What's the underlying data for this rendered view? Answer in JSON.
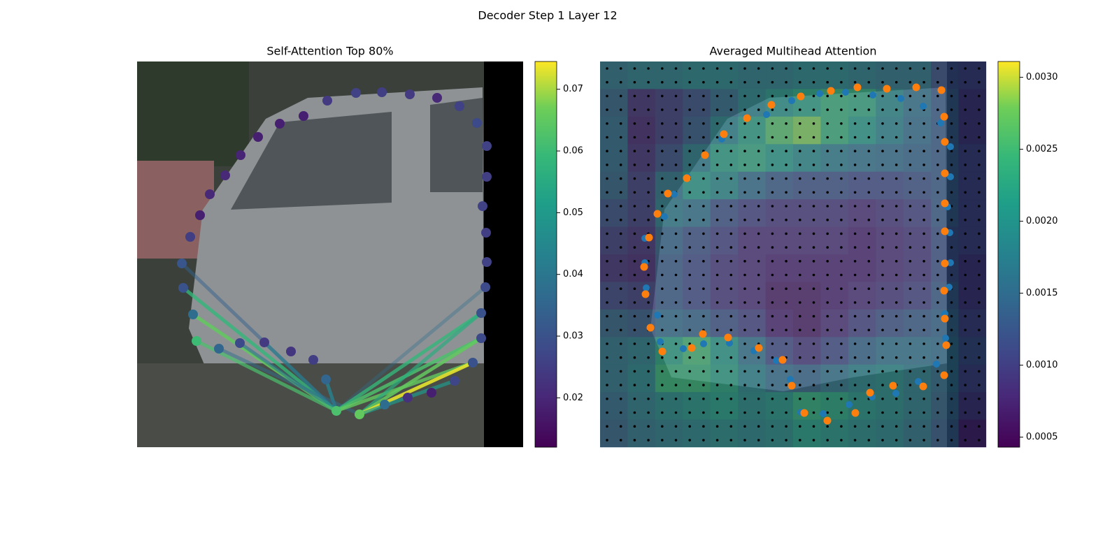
{
  "title": "Decoder Step 1 Layer 12",
  "chart_data": [
    {
      "type": "scatter",
      "title": "Self-Attention Top 80%",
      "values": [
        0.031,
        0.025,
        0.018,
        0.02,
        0.02,
        0.019,
        0.018,
        0.018,
        0.018,
        0.024,
        0.026,
        0.025,
        0.024,
        0.02,
        0.026,
        0.028,
        0.026,
        0.025,
        0.026,
        0.025,
        0.026,
        0.028,
        0.03,
        0.028,
        0.03,
        0.027,
        0.018,
        0.022,
        0.037,
        0.065,
        0.062,
        0.035,
        0.025,
        0.023,
        0.024,
        0.028,
        0.035,
        0.06,
        0.037,
        0.03
      ],
      "clim": [
        0.012,
        0.0745
      ],
      "cticks": [
        0.02,
        0.03,
        0.04,
        0.05,
        0.06,
        0.07
      ]
    },
    {
      "type": "heatmap",
      "title": "Averaged Multihead Attention",
      "values": [
        [
          0.0016,
          0.0017,
          0.0017,
          0.0018,
          0.0018,
          0.0017,
          0.0017,
          0.0018,
          0.0018,
          0.0017,
          0.0016,
          0.0016,
          0.0012,
          0.0011
        ],
        [
          0.0014,
          0.0009,
          0.001,
          0.0012,
          0.0015,
          0.0018,
          0.002,
          0.0022,
          0.0024,
          0.0023,
          0.0019,
          0.0016,
          0.0013,
          0.001
        ],
        [
          0.0015,
          0.0008,
          0.001,
          0.0013,
          0.0018,
          0.0022,
          0.0026,
          0.0028,
          0.0024,
          0.0021,
          0.0018,
          0.0015,
          0.0013,
          0.001
        ],
        [
          0.0015,
          0.0009,
          0.0012,
          0.0017,
          0.0022,
          0.0023,
          0.0021,
          0.0019,
          0.0017,
          0.0016,
          0.0015,
          0.0014,
          0.0013,
          0.0011
        ],
        [
          0.0014,
          0.001,
          0.0016,
          0.0021,
          0.0019,
          0.0015,
          0.0013,
          0.0012,
          0.0012,
          0.0011,
          0.0011,
          0.0012,
          0.0013,
          0.0011
        ],
        [
          0.0012,
          0.001,
          0.0017,
          0.0016,
          0.0012,
          0.001,
          0.0009,
          0.0009,
          0.0009,
          0.0008,
          0.0009,
          0.001,
          0.0013,
          0.0011
        ],
        [
          0.001,
          0.0009,
          0.0014,
          0.0012,
          0.001,
          0.0008,
          0.0008,
          0.0008,
          0.0008,
          0.0007,
          0.0008,
          0.0009,
          0.0012,
          0.0011
        ],
        [
          0.0009,
          0.0008,
          0.0013,
          0.0011,
          0.0009,
          0.0008,
          0.0007,
          0.0007,
          0.0007,
          0.0007,
          0.0008,
          0.0009,
          0.0012,
          0.001
        ],
        [
          0.0011,
          0.001,
          0.0013,
          0.0011,
          0.0009,
          0.0008,
          0.0006,
          0.0006,
          0.0007,
          0.0008,
          0.0009,
          0.001,
          0.0013,
          0.001
        ],
        [
          0.0014,
          0.0013,
          0.0015,
          0.0014,
          0.0012,
          0.001,
          0.0007,
          0.0006,
          0.0008,
          0.001,
          0.0012,
          0.0013,
          0.0014,
          0.0011
        ],
        [
          0.0016,
          0.0017,
          0.0022,
          0.0025,
          0.0021,
          0.0016,
          0.0011,
          0.0009,
          0.0011,
          0.0014,
          0.0016,
          0.0016,
          0.0015,
          0.0012
        ],
        [
          0.0016,
          0.0018,
          0.0024,
          0.0024,
          0.0022,
          0.0018,
          0.0015,
          0.0014,
          0.0016,
          0.0018,
          0.0019,
          0.0017,
          0.0015,
          0.0011
        ],
        [
          0.0015,
          0.0017,
          0.0019,
          0.002,
          0.0021,
          0.0019,
          0.002,
          0.0023,
          0.0022,
          0.002,
          0.0019,
          0.0017,
          0.0014,
          0.001
        ],
        [
          0.0014,
          0.0016,
          0.0017,
          0.0018,
          0.0019,
          0.0018,
          0.0019,
          0.0021,
          0.002,
          0.0019,
          0.0018,
          0.0016,
          0.0013,
          0.0008
        ]
      ],
      "clim": [
        0.00043,
        0.00311
      ],
      "cticks": [
        0.0005,
        {
          "value": 0.001,
          "label": "0.0010"
        },
        0.0015,
        {
          "value": 0.002,
          "label": "0.0020"
        },
        0.0025,
        {
          "value": 0.003,
          "label": "0.0030"
        }
      ]
    }
  ]
}
